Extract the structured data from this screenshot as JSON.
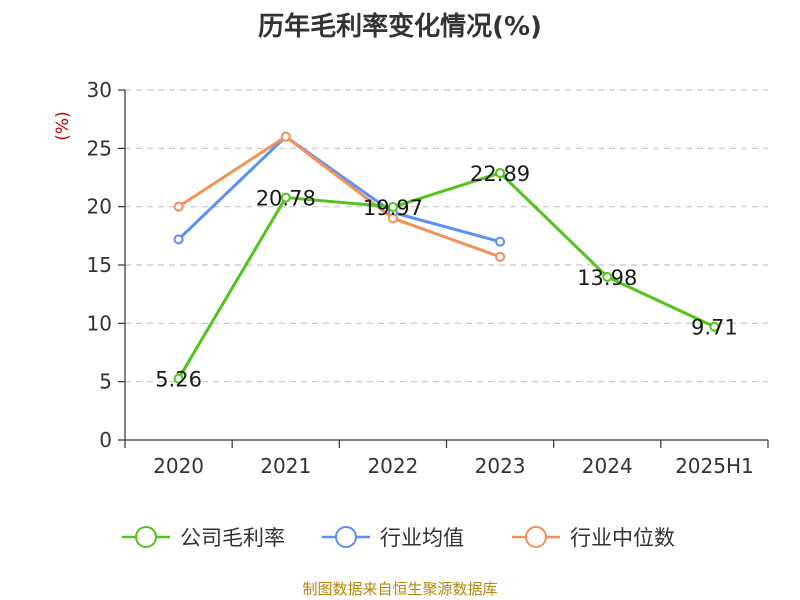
{
  "chart_data": {
    "type": "line",
    "title": "历年毛利率变化情况(%)",
    "ylabel": "(%)",
    "categories": [
      "2020",
      "2021",
      "2022",
      "2023",
      "2024",
      "2025H1"
    ],
    "ylim": [
      0,
      30
    ],
    "yticks": [
      0,
      5,
      10,
      15,
      20,
      25,
      30
    ],
    "grid": true,
    "legend_position": "bottom",
    "series": [
      {
        "name": "公司毛利率",
        "color": "#52c41a",
        "values": [
          5.26,
          20.78,
          19.97,
          22.89,
          13.98,
          9.71
        ],
        "labels": [
          "5.26",
          "20.78",
          "19.97",
          "22.89",
          "13.98",
          "9.71"
        ]
      },
      {
        "name": "行业均值",
        "color": "#5b8ff9",
        "values": [
          17.2,
          26.0,
          19.5,
          17.0,
          null,
          null
        ]
      },
      {
        "name": "行业中位数",
        "color": "#f6905a",
        "values": [
          20.0,
          26.0,
          19.0,
          15.7,
          null,
          null
        ]
      }
    ]
  },
  "source": "制图数据来自恒生聚源数据库"
}
